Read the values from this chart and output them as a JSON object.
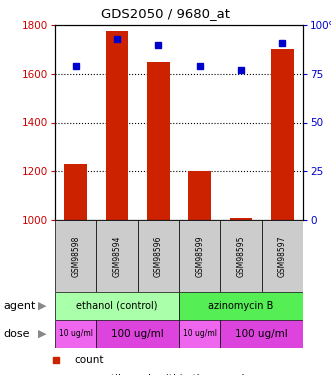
{
  "title": "GDS2050 / 9680_at",
  "samples": [
    "GSM98598",
    "GSM98594",
    "GSM98596",
    "GSM98599",
    "GSM98595",
    "GSM98597"
  ],
  "counts": [
    1230,
    1775,
    1650,
    1200,
    1010,
    1700
  ],
  "percentiles": [
    79,
    93,
    90,
    79,
    77,
    91
  ],
  "ylim_left": [
    1000,
    1800
  ],
  "ylim_right": [
    0,
    100
  ],
  "yticks_left": [
    1000,
    1200,
    1400,
    1600,
    1800
  ],
  "yticks_right": [
    0,
    25,
    50,
    75,
    100
  ],
  "bar_color": "#cc2200",
  "dot_color": "#0000cc",
  "agent_groups": [
    {
      "label": "ethanol (control)",
      "color": "#aaffaa",
      "start": 0,
      "end": 3
    },
    {
      "label": "azinomycin B",
      "color": "#55ee55",
      "start": 3,
      "end": 6
    }
  ],
  "dose_groups": [
    {
      "label": "10 ug/ml",
      "color": "#ee66ee",
      "start": 0,
      "end": 1,
      "fontsize": 5.5
    },
    {
      "label": "100 ug/ml",
      "color": "#dd44dd",
      "start": 1,
      "end": 3,
      "fontsize": 7.5
    },
    {
      "label": "10 ug/ml",
      "color": "#ee66ee",
      "start": 3,
      "end": 4,
      "fontsize": 5.5
    },
    {
      "label": "100 ug/ml",
      "color": "#dd44dd",
      "start": 4,
      "end": 6,
      "fontsize": 7.5
    }
  ],
  "sample_box_color": "#cccccc",
  "left_ylabel_color": "#cc0000",
  "right_ylabel_color": "#0000cc",
  "fig_width": 3.31,
  "fig_height": 3.75,
  "dpi": 100
}
